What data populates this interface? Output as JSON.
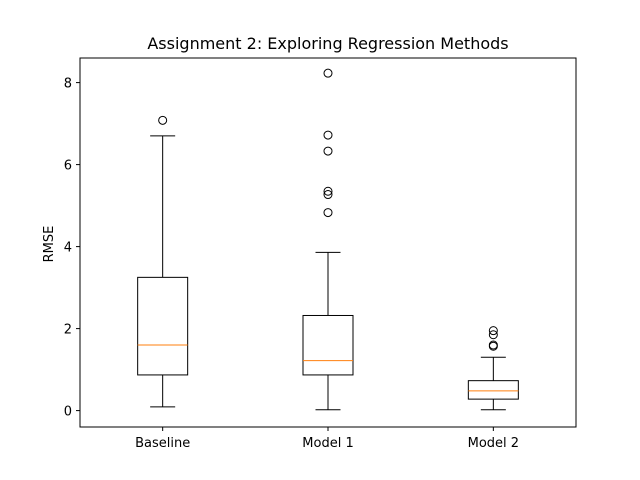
{
  "chart_data": {
    "type": "boxplot",
    "title": "Assignment 2: Exploring Regression Methods",
    "xlabel": "",
    "ylabel": "RMSE",
    "ylim": [
      -0.4,
      8.6
    ],
    "yticks": [
      "0",
      "2",
      "4",
      "6",
      "8"
    ],
    "grid": false,
    "colors": {
      "box": "#000000",
      "median": "#ff7f0e",
      "flier": "#000000"
    },
    "categories": [
      "Baseline",
      "Model 1",
      "Model 2"
    ],
    "boxes": [
      {
        "whisker_low": 0.09,
        "q1": 0.87,
        "median": 1.6,
        "q3": 3.25,
        "whisker_high": 6.7,
        "fliers": [
          7.08
        ]
      },
      {
        "whisker_low": 0.02,
        "q1": 0.87,
        "median": 1.22,
        "q3": 2.32,
        "whisker_high": 3.86,
        "fliers": [
          4.83,
          5.27,
          5.35,
          6.33,
          6.72,
          8.23
        ]
      },
      {
        "whisker_low": 0.02,
        "q1": 0.28,
        "median": 0.48,
        "q3": 0.73,
        "whisker_high": 1.3,
        "fliers": [
          1.57,
          1.6,
          1.85,
          1.95
        ]
      }
    ]
  }
}
